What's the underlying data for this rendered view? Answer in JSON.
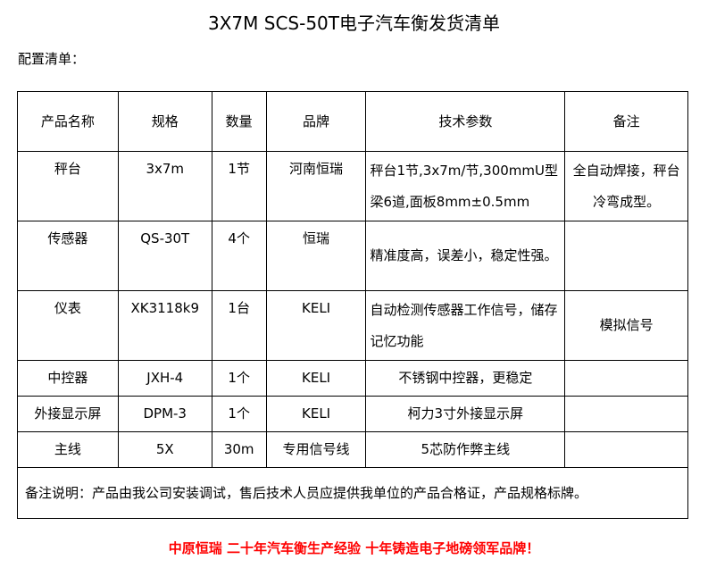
{
  "title": "3X7M SCS-50T电子汽车衡发货清单",
  "subtitle": "配置清单：",
  "headers": [
    "产品名称",
    "规格",
    "数量",
    "品牌",
    "技术参数",
    "备注"
  ],
  "rows": [
    [
      "秤台",
      "3x7m",
      "1节",
      "河南恒瑞",
      "秤台1节,3x7m/节,300mmU型梁6道,面板8mm±0.5mm",
      "全自动焊接，秤台冷弯成型。"
    ],
    [
      "传感器",
      "QS-30T",
      "4个",
      "恒瑞",
      "精准度高，误差小，稳定性强。",
      ""
    ],
    [
      "仪表",
      "XK3118k9",
      "1台",
      "KELI",
      "自动检测传感器工作信号，储存记忆功能",
      "模拟信号"
    ],
    [
      "中控器",
      "JXH-4",
      "1个",
      "KELI",
      "不锈钢中控器，更稳定",
      ""
    ],
    [
      "外接显示屏",
      "DPM-3",
      "1个",
      "KELI",
      "柯力3寸外接显示屏",
      ""
    ],
    [
      "主线",
      "5X",
      "30m",
      "专用信号线",
      "5芯防作弊主线",
      ""
    ]
  ],
  "note": "备注说明：产品由我公司安装调试，售后技术人员应提供我单位的产品合格证，产品规格标牌。",
  "footer": "中原恒瑞 二十年汽车衡生产经验 十年铸造电子地磅领军品牌！"
}
